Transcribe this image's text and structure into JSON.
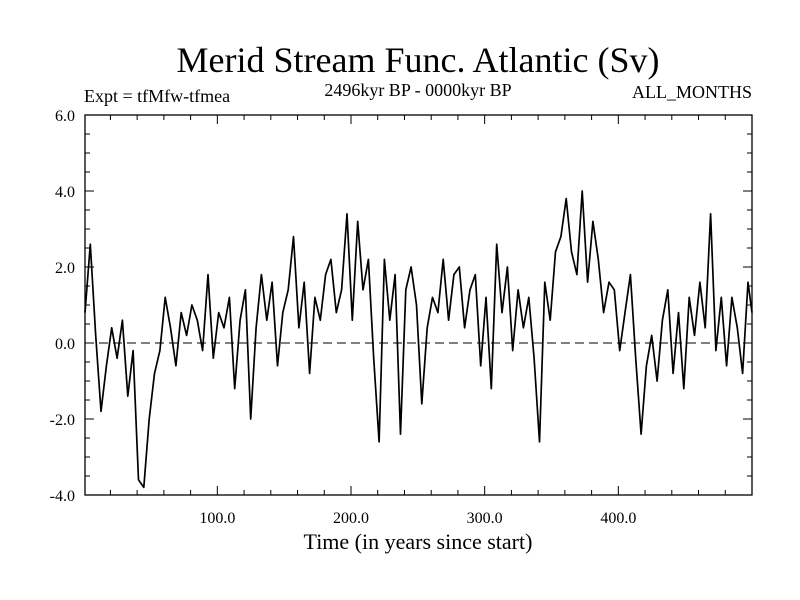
{
  "chart_data": {
    "type": "line",
    "title": "Merid Stream Func. Atlantic (Sv)",
    "subtitle_left": "Expt = tfMfw-tfmea",
    "subtitle_center": "2496kyr BP - 0000kyr BP",
    "subtitle_right": "ALL_MONTHS",
    "xlabel": "Time (in years since start)",
    "ylabel": "",
    "xlim": [
      1,
      500
    ],
    "ylim": [
      -4.0,
      6.0
    ],
    "x_ticks": [
      100,
      200,
      300,
      400
    ],
    "x_tick_labels": [
      "100.0",
      "200.0",
      "300.0",
      "400.0"
    ],
    "y_ticks": [
      -4,
      -2,
      0,
      2,
      4,
      6
    ],
    "y_tick_labels": [
      "-4.0",
      "-2.0",
      "0.0",
      "2.0",
      "4.0",
      "6.0"
    ],
    "reference_line": {
      "y": 0.0,
      "style": "dashed"
    },
    "series": [
      {
        "name": "Merid Stream Func. Atlantic",
        "x": [
          1,
          5,
          9,
          13,
          17,
          21,
          25,
          29,
          33,
          37,
          41,
          45,
          49,
          53,
          57,
          61,
          65,
          69,
          73,
          77,
          81,
          85,
          89,
          93,
          97,
          101,
          105,
          109,
          113,
          117,
          121,
          125,
          129,
          133,
          137,
          141,
          145,
          149,
          153,
          157,
          161,
          165,
          169,
          173,
          177,
          181,
          185,
          189,
          193,
          197,
          201,
          205,
          209,
          213,
          217,
          221,
          225,
          229,
          233,
          237,
          241,
          245,
          249,
          253,
          257,
          261,
          265,
          269,
          273,
          277,
          281,
          285,
          289,
          293,
          297,
          301,
          305,
          309,
          313,
          317,
          321,
          325,
          329,
          333,
          337,
          341,
          345,
          349,
          353,
          357,
          361,
          365,
          369,
          373,
          377,
          381,
          385,
          389,
          393,
          397,
          401,
          405,
          409,
          413,
          417,
          421,
          425,
          429,
          433,
          437,
          441,
          445,
          449,
          453,
          457,
          461,
          465,
          469,
          473,
          477,
          481,
          485,
          489,
          493,
          497,
          500
        ],
        "values": [
          0.8,
          2.6,
          0.2,
          -1.8,
          -0.6,
          0.4,
          -0.4,
          0.6,
          -1.4,
          -0.2,
          -3.6,
          -3.8,
          -2.0,
          -0.8,
          -0.2,
          1.2,
          0.4,
          -0.6,
          0.8,
          0.2,
          1.0,
          0.6,
          -0.2,
          1.8,
          -0.4,
          0.8,
          0.4,
          1.2,
          -1.2,
          0.6,
          1.4,
          -2.0,
          0.4,
          1.8,
          0.6,
          1.6,
          -0.6,
          0.8,
          1.4,
          2.8,
          0.4,
          1.6,
          -0.8,
          1.2,
          0.6,
          1.8,
          2.2,
          0.8,
          1.4,
          3.4,
          0.6,
          3.2,
          1.4,
          2.2,
          -0.4,
          -2.6,
          2.2,
          0.6,
          1.8,
          -2.4,
          1.4,
          2.0,
          1.0,
          -1.6,
          0.4,
          1.2,
          0.8,
          2.2,
          0.6,
          1.8,
          2.0,
          0.4,
          1.4,
          1.8,
          -0.6,
          1.2,
          -1.2,
          2.6,
          0.8,
          2.0,
          -0.2,
          1.4,
          0.4,
          1.2,
          -0.4,
          -2.6,
          1.6,
          0.6,
          2.4,
          2.8,
          3.8,
          2.4,
          1.8,
          4.0,
          1.6,
          3.2,
          2.2,
          0.8,
          1.6,
          1.4,
          -0.2,
          0.8,
          1.8,
          -0.4,
          -2.4,
          -0.6,
          0.2,
          -1.0,
          0.6,
          1.4,
          -0.8,
          0.8,
          -1.2,
          1.2,
          0.2,
          1.6,
          0.4,
          3.4,
          -0.2,
          1.2,
          -0.6,
          1.2,
          0.4,
          -0.8,
          1.6,
          0.8
        ]
      }
    ]
  }
}
